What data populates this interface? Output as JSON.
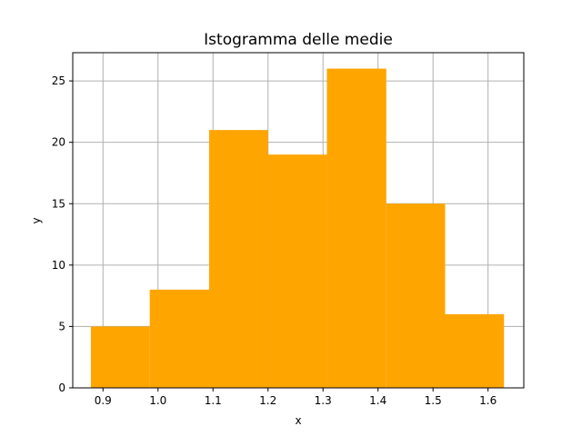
{
  "chart_data": {
    "type": "bar",
    "title": "Istogramma delle medie",
    "xlabel": "x",
    "ylabel": "y",
    "xlim": [
      0.845,
      1.665
    ],
    "ylim": [
      0,
      27.3
    ],
    "grid": true,
    "bar_color": "#ffa500",
    "grid_color": "#b0b0b0",
    "bins": [
      {
        "x0": 0.878,
        "x1": 0.985,
        "value": 5
      },
      {
        "x0": 0.985,
        "x1": 1.093,
        "value": 8
      },
      {
        "x0": 1.093,
        "x1": 1.2,
        "value": 21
      },
      {
        "x0": 1.2,
        "x1": 1.307,
        "value": 19
      },
      {
        "x0": 1.307,
        "x1": 1.415,
        "value": 26
      },
      {
        "x0": 1.415,
        "x1": 1.522,
        "value": 15
      },
      {
        "x0": 1.522,
        "x1": 1.629,
        "value": 6
      }
    ],
    "x_ticks": [
      0.9,
      1.0,
      1.1,
      1.2,
      1.3,
      1.4,
      1.5,
      1.6
    ],
    "x_tick_labels": [
      "0.9",
      "1.0",
      "1.1",
      "1.2",
      "1.3",
      "1.4",
      "1.5",
      "1.6"
    ],
    "y_ticks": [
      0,
      5,
      10,
      15,
      20,
      25
    ],
    "y_tick_labels": [
      "0",
      "5",
      "10",
      "15",
      "20",
      "25"
    ]
  }
}
